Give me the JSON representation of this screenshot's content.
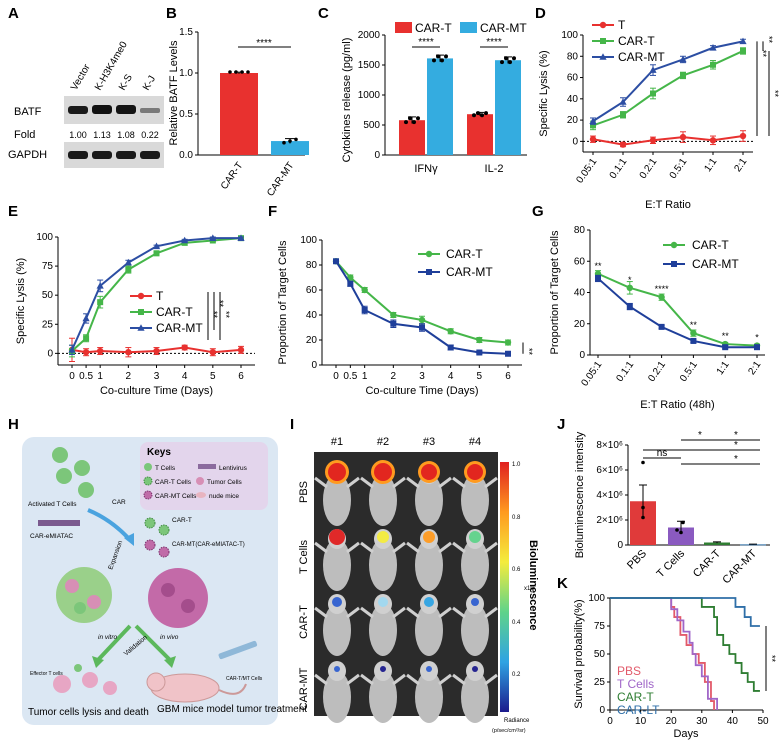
{
  "panel_letters": {
    "a": "A",
    "b": "B",
    "c": "C",
    "d": "D",
    "e": "E",
    "f": "F",
    "g": "G",
    "h": "H",
    "i": "I",
    "j": "J",
    "k": "K"
  },
  "colors": {
    "red": "#e8312f",
    "green": "#45b649",
    "blue": "#2c4ea3",
    "cyan": "#34ace0",
    "darkblue": "#1f3f9a",
    "pbs": "#e25a6a",
    "tcells": "#a066c8",
    "cart": "#2e7d32",
    "carlt": "#2f6fa8",
    "gray": "#9e9e9e"
  },
  "panelA": {
    "lane_labels": [
      "Vector",
      "K-H3K4me0",
      "K-S",
      "K-J"
    ],
    "row_batf": "BATF",
    "row_fold": "Fold",
    "fold_values": [
      "1.00",
      "1.13",
      "1.08",
      "0.22"
    ],
    "row_gapdh": "GAPDH"
  },
  "panelB": {
    "chart_data": {
      "type": "bar",
      "categories": [
        "CAR-T",
        "CAR-MT"
      ],
      "values": [
        1.0,
        0.17
      ],
      "errors": [
        0.01,
        0.03
      ],
      "ylabel": "Relative BATF Levels",
      "ylim": [
        0,
        1.5
      ],
      "yticks": [
        "0.0",
        "0.5",
        "1.0",
        "1.5"
      ],
      "significance": "****"
    }
  },
  "panelC": {
    "chart_data": {
      "type": "bar",
      "categories": [
        "IFNγ",
        "IL-2"
      ],
      "series": [
        {
          "name": "CAR-T",
          "values": [
            580,
            680
          ],
          "errors": [
            55,
            30
          ]
        },
        {
          "name": "CAR-MT",
          "values": [
            1610,
            1580
          ],
          "errors": [
            55,
            55
          ]
        }
      ],
      "ylabel": "Cytokines release (pg/ml)",
      "ylim": [
        0,
        2000
      ],
      "yticks": [
        "0",
        "500",
        "1000",
        "1500",
        "2000"
      ],
      "significance": [
        "****",
        "****"
      ]
    }
  },
  "panelD": {
    "chart_data": {
      "type": "line",
      "categories": [
        "0.05:1",
        "0.1:1",
        "0.2:1",
        "0.5:1",
        "1:1",
        "2:1"
      ],
      "series": [
        {
          "name": "T",
          "values": [
            2,
            -3,
            1,
            4,
            1,
            5
          ],
          "errors": [
            3,
            2,
            3,
            5,
            4,
            5
          ]
        },
        {
          "name": "CAR-T",
          "values": [
            15,
            25,
            45,
            62,
            72,
            85
          ],
          "errors": [
            4,
            3,
            5,
            3,
            4,
            3
          ]
        },
        {
          "name": "CAR-MT",
          "values": [
            19,
            37,
            67,
            77,
            88,
            94
          ],
          "errors": [
            3,
            4,
            5,
            3,
            2,
            2
          ]
        }
      ],
      "xlabel": "E:T Ratio",
      "ylabel": "Specific Lysis (%)",
      "ylim": [
        -10,
        100
      ],
      "yticks": [
        "0",
        "20",
        "40",
        "60",
        "80",
        "100"
      ],
      "significance": [
        "**",
        "**",
        "**"
      ]
    }
  },
  "panelE": {
    "chart_data": {
      "type": "line",
      "x": [
        0,
        0.5,
        1,
        2,
        3,
        4,
        5,
        6
      ],
      "xtick_labels": [
        "0",
        "0.5",
        "1",
        "2",
        "3",
        "4",
        "5",
        "6"
      ],
      "series": [
        {
          "name": "T",
          "values": [
            3,
            1,
            2,
            1,
            2,
            5,
            1,
            3
          ],
          "errors": [
            10,
            3,
            3,
            4,
            3,
            2,
            3,
            3
          ]
        },
        {
          "name": "CAR-T",
          "values": [
            2,
            13,
            44,
            72,
            86,
            95,
            97,
            99
          ],
          "errors": [
            5,
            3,
            5,
            3,
            2,
            2,
            1,
            1
          ]
        },
        {
          "name": "CAR-MT",
          "values": [
            3,
            30,
            58,
            78,
            92,
            97,
            99,
            99
          ],
          "errors": [
            4,
            4,
            5,
            2,
            1,
            1,
            1,
            1
          ]
        }
      ],
      "xlabel": "Co-culture Time (Days)",
      "ylabel": "Specific Lysis (%)",
      "ylim": [
        -10,
        100
      ],
      "yticks": [
        "0",
        "25",
        "50",
        "75",
        "100"
      ],
      "significance": [
        "**",
        "**",
        "**"
      ]
    }
  },
  "panelF": {
    "chart_data": {
      "type": "line",
      "x": [
        0,
        0.5,
        1,
        2,
        3,
        4,
        5,
        6
      ],
      "xtick_labels": [
        "0",
        "0.5",
        "1",
        "2",
        "3",
        "4",
        "5",
        "6"
      ],
      "series": [
        {
          "name": "CAR-T",
          "values": [
            83,
            70,
            60,
            40,
            36,
            27,
            20,
            18
          ],
          "errors": [
            1,
            2,
            2,
            2,
            3,
            2,
            2,
            2
          ]
        },
        {
          "name": "CAR-MT",
          "values": [
            83,
            65,
            44,
            33,
            30,
            14,
            10,
            9
          ],
          "errors": [
            1,
            2,
            3,
            3,
            3,
            2,
            1,
            1
          ]
        }
      ],
      "xlabel": "Co-culture Time (Days)",
      "ylabel": "Proportion of Target Cells",
      "ylim": [
        0,
        100
      ],
      "yticks": [
        "0",
        "20",
        "40",
        "60",
        "80",
        "100"
      ],
      "significance": "**"
    }
  },
  "panelG": {
    "chart_data": {
      "type": "line",
      "categories": [
        "0.05:1",
        "0.1:1",
        "0.2:1",
        "0.5:1",
        "1:1",
        "2:1"
      ],
      "series": [
        {
          "name": "CAR-T",
          "values": [
            52,
            43,
            37,
            14,
            7,
            6
          ],
          "errors": [
            2,
            4,
            2,
            2,
            1,
            1
          ]
        },
        {
          "name": "CAR-MT",
          "values": [
            49,
            31,
            18,
            9,
            5,
            5
          ],
          "errors": [
            2,
            2,
            1,
            1,
            1,
            1
          ]
        }
      ],
      "xlabel": "E:T Ratio (48h)",
      "ylabel": "Proportion of Target Cells",
      "ylim": [
        0,
        80
      ],
      "yticks": [
        "0",
        "20",
        "40",
        "60",
        "80"
      ],
      "point_significance": [
        "**",
        "*",
        "****",
        "**",
        "**",
        "*"
      ]
    }
  },
  "panelH": {
    "keys_title": "Keys",
    "keys": [
      "T Cells",
      "Lentivirus",
      "CAR-T Cells",
      "Tumor Cells",
      "CAR-MT Cells",
      "nude mice"
    ],
    "activated": "Activated T Cells",
    "car": "CAR",
    "car_emiatac": "CAR-eMIATAC",
    "expansion": "Expansion",
    "car_t": "CAR-T",
    "car_mt": "CAR-MT(CAR-eMIATAC-T)",
    "validation": "Validation",
    "in_vitro": "in vitro",
    "in_vivo": "in vivo",
    "effector_t": "Effector T cells",
    "car_tmt": "CAR-T/MT Cells",
    "lysis": "Tumor cells lysis and death",
    "gbm": "GBM mice model tumor treatment"
  },
  "panelI": {
    "columns": [
      "#1",
      "#2",
      "#3",
      "#4"
    ],
    "rows": [
      "PBS",
      "T Cells",
      "CAR-T",
      "CAR-MT"
    ],
    "colorbar_label": "Bioluminescence",
    "colorbar_ticks": [
      "1.0",
      "0.8",
      "0.6",
      "0.4",
      "0.2"
    ],
    "scale": "x10⁷",
    "radiance": "Radiance",
    "radiance_units": "(p/sec/cm²/sr)"
  },
  "panelJ": {
    "chart_data": {
      "type": "bar",
      "categories": [
        "PBS",
        "T Cells",
        "CAR-T",
        "CAR-MT"
      ],
      "values": [
        3.5,
        1.4,
        0.2,
        0.05
      ],
      "errors": [
        1.3,
        0.5,
        0.05,
        0.02
      ],
      "ylabel": "Bioluminescence intensity",
      "ylim": [
        0,
        8
      ],
      "yticks": [
        "0",
        "2×10⁶",
        "4×10⁶",
        "6×10⁶",
        "8×10⁶"
      ],
      "significance": [
        "ns",
        "*",
        "*",
        "*",
        "*"
      ]
    }
  },
  "panelK": {
    "chart_data": {
      "type": "line",
      "series": [
        {
          "name": "PBS",
          "x": [
            0,
            19,
            20,
            21,
            23,
            25,
            27,
            29,
            31,
            33,
            34
          ],
          "values": [
            100,
            100,
            92,
            83,
            67,
            58,
            50,
            42,
            25,
            8,
            0
          ]
        },
        {
          "name": "T Cells",
          "x": [
            0,
            18,
            20,
            22,
            24,
            26,
            27,
            28,
            30,
            32,
            35
          ],
          "values": [
            100,
            100,
            90,
            80,
            70,
            60,
            50,
            40,
            30,
            10,
            0
          ]
        },
        {
          "name": "CAR-T",
          "x": [
            0,
            29,
            30,
            34,
            35,
            37,
            39,
            41,
            43,
            45,
            47,
            49
          ],
          "values": [
            100,
            100,
            92,
            83,
            67,
            58,
            50,
            42,
            33,
            25,
            17,
            17
          ]
        },
        {
          "name": "CAR-LT",
          "x": [
            0,
            39,
            41,
            44,
            46,
            49
          ],
          "values": [
            100,
            100,
            92,
            83,
            75,
            75
          ]
        }
      ],
      "xlabel": "Days",
      "ylabel": "Survival probability(%)",
      "xlim": [
        0,
        50
      ],
      "ylim": [
        0,
        100
      ],
      "xticks": [
        "0",
        "10",
        "20",
        "30",
        "40",
        "50"
      ],
      "yticks": [
        "0",
        "25",
        "50",
        "75",
        "100"
      ],
      "significance": "**"
    }
  }
}
